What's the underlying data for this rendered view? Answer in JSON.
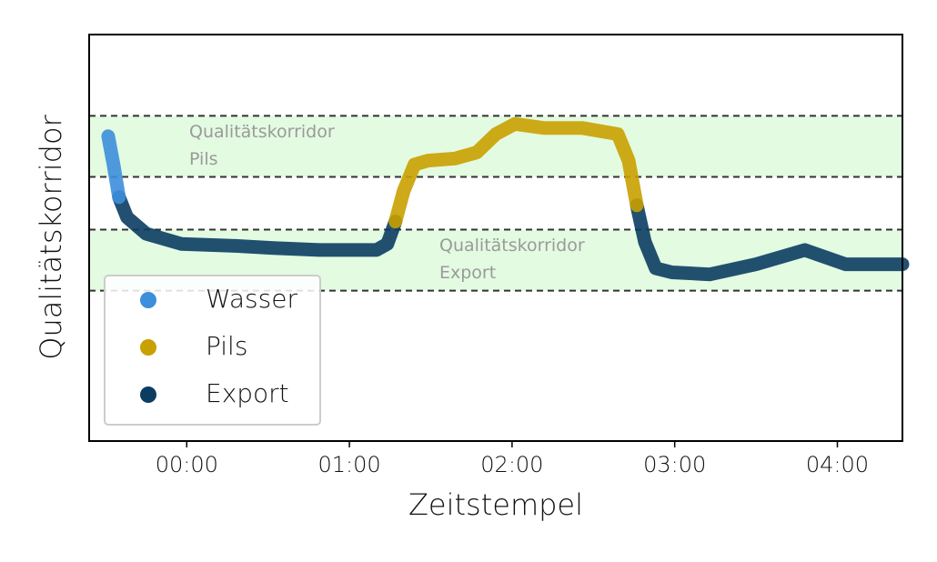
{
  "chart_data": {
    "type": "line",
    "xlabel": "Zeitstempel",
    "ylabel": "Qualitätskorridor",
    "x": [
      -29,
      -27,
      -25,
      -22,
      -15,
      -2,
      18,
      32,
      49,
      59,
      70,
      74,
      77,
      80,
      84,
      89,
      99,
      107,
      114,
      121,
      132,
      146,
      159,
      163,
      166,
      169,
      173,
      179,
      193,
      210,
      228,
      243,
      264
    ],
    "series": [
      {
        "name": "Wasser",
        "color": "#3d8edb",
        "values": [
          75,
          68,
          60,
          null,
          null,
          null,
          null,
          null,
          null,
          null,
          null,
          null,
          null,
          null,
          null,
          null,
          null,
          null,
          null,
          null,
          null,
          null,
          null,
          null,
          null,
          null,
          null,
          null,
          null,
          null,
          null,
          null,
          null
        ]
      },
      {
        "name": "Pils",
        "color": "#c9a000",
        "values": [
          null,
          null,
          null,
          null,
          null,
          null,
          null,
          null,
          null,
          null,
          null,
          null,
          54,
          61.5,
          68,
          69,
          69.5,
          71,
          75.5,
          78,
          77,
          77,
          75.5,
          69,
          58,
          null,
          null,
          null,
          null,
          null,
          null,
          null,
          null
        ]
      },
      {
        "name": "Export",
        "color": "#0b3d63",
        "values": [
          null,
          null,
          60,
          55,
          51,
          48.5,
          48,
          47.5,
          47,
          47,
          47,
          48.5,
          54,
          null,
          null,
          null,
          null,
          null,
          null,
          null,
          null,
          null,
          null,
          null,
          58,
          49,
          42.5,
          41.5,
          41,
          43.5,
          47,
          43.5,
          43.5
        ]
      }
    ],
    "bands": [
      {
        "ymin": 65,
        "ymax": 80,
        "color": "#e3fbe1",
        "label": [
          "Qualitätskorridor",
          "Pils"
        ]
      },
      {
        "ymin": 37,
        "ymax": 52,
        "color": "#e3fbe1",
        "label": [
          "Qualitätskorridor",
          "Export"
        ]
      }
    ],
    "xlim": [
      -36,
      264
    ],
    "ylim": [
      0,
      100
    ],
    "xticks": [
      {
        "value": 0,
        "label": "00:00"
      },
      {
        "value": 60,
        "label": "01:00"
      },
      {
        "value": 120,
        "label": "02:00"
      },
      {
        "value": 180,
        "label": "03:00"
      },
      {
        "value": 240,
        "label": "04:00"
      }
    ],
    "legend": "lower left"
  }
}
